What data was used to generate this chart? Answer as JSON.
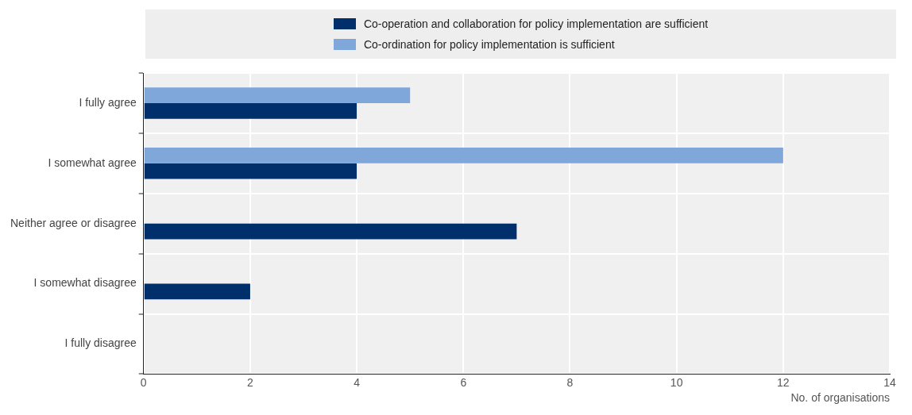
{
  "chart_data": {
    "type": "bar",
    "orientation": "horizontal",
    "categories": [
      "I fully agree",
      "I somewhat agree",
      "Neither agree or disagree",
      "I somewhat disagree",
      "I fully disagree"
    ],
    "series": [
      {
        "name": "Co-operation and collaboration for policy implementation are sufficient",
        "color": "#002f6c",
        "values": [
          4,
          4,
          7,
          2,
          0
        ]
      },
      {
        "name": "Co-ordination for policy implementation is sufficient",
        "color": "#7fa7d9",
        "values": [
          5,
          12,
          0,
          0,
          0
        ]
      }
    ],
    "xlim": [
      0,
      14
    ],
    "xticks": [
      0,
      2,
      4,
      6,
      8,
      10,
      12,
      14
    ],
    "xlabel": "No. of organisations",
    "grid": true,
    "legend": "top"
  }
}
